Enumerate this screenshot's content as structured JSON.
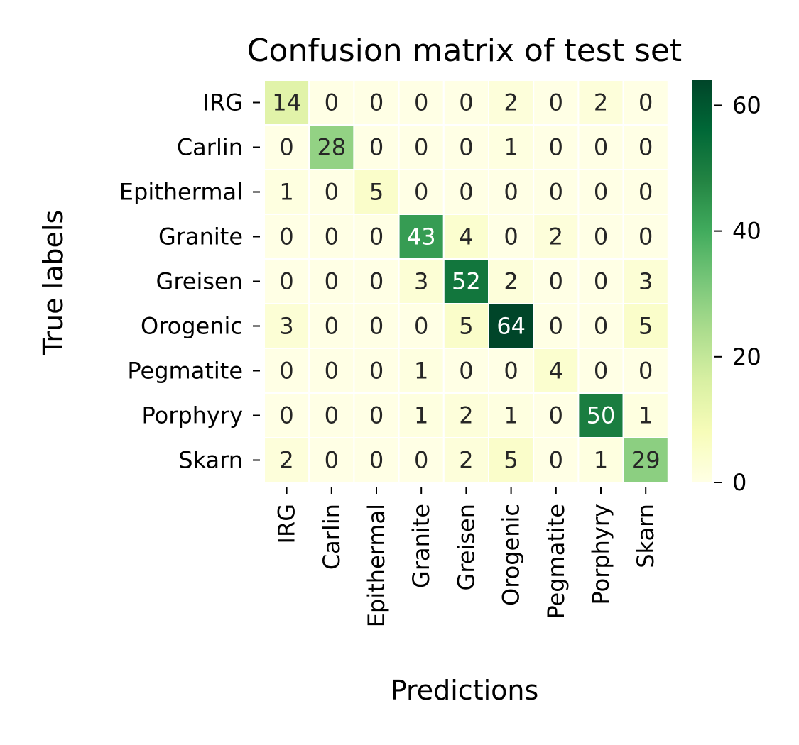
{
  "chart_data": {
    "type": "heatmap",
    "title": "Confusion matrix of test set",
    "xlabel": "Predictions",
    "ylabel": "True labels",
    "row_labels": [
      "IRG",
      "Carlin",
      "Epithermal",
      "Granite",
      "Greisen",
      "Orogenic",
      "Pegmatite",
      "Porphyry",
      "Skarn"
    ],
    "col_labels": [
      "IRG",
      "Carlin",
      "Epithermal",
      "Granite",
      "Greisen",
      "Orogenic",
      "Pegmatite",
      "Porphyry",
      "Skarn"
    ],
    "values": [
      [
        14,
        0,
        0,
        0,
        0,
        2,
        0,
        2,
        0
      ],
      [
        0,
        28,
        0,
        0,
        0,
        1,
        0,
        0,
        0
      ],
      [
        1,
        0,
        5,
        0,
        0,
        0,
        0,
        0,
        0
      ],
      [
        0,
        0,
        0,
        43,
        4,
        0,
        2,
        0,
        0
      ],
      [
        0,
        0,
        0,
        3,
        52,
        2,
        0,
        0,
        3
      ],
      [
        3,
        0,
        0,
        0,
        5,
        64,
        0,
        0,
        5
      ],
      [
        0,
        0,
        0,
        1,
        0,
        0,
        4,
        0,
        0
      ],
      [
        0,
        0,
        0,
        1,
        2,
        1,
        0,
        50,
        1
      ],
      [
        2,
        0,
        0,
        0,
        2,
        5,
        0,
        1,
        29
      ]
    ],
    "colormap": "YlGn",
    "value_range": [
      0,
      64
    ],
    "colorbar": {
      "ticks": [
        0,
        20,
        40,
        60
      ],
      "tick_labels": [
        "0",
        "20",
        "40",
        "60"
      ]
    },
    "annotations": true,
    "grid": false,
    "colors": {
      "cell_border": "#ffffff",
      "text_dark": "#262626",
      "text_light": "#ffffff"
    }
  }
}
